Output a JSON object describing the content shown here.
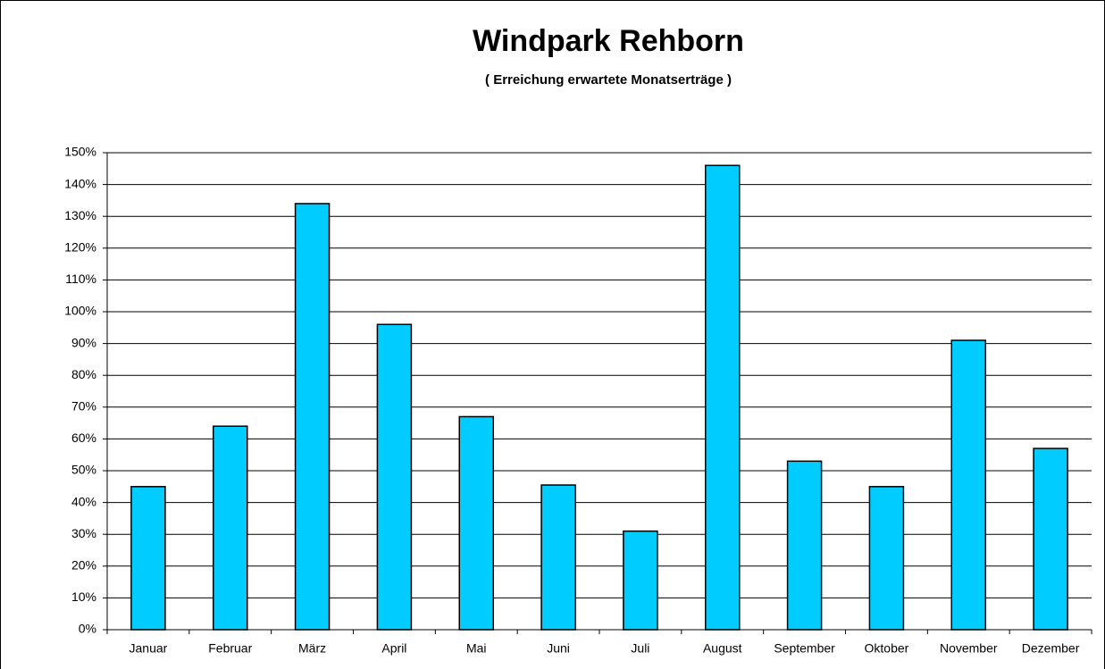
{
  "chart_data": {
    "type": "bar",
    "title": "Windpark Rehborn",
    "subtitle": "( Erreichung erwartete Monatserträge )",
    "categories": [
      "Januar",
      "Februar",
      "März",
      "April",
      "Mai",
      "Juni",
      "Juli",
      "August",
      "September",
      "Oktober",
      "November",
      "Dezember"
    ],
    "values": [
      45,
      64,
      134,
      96,
      67,
      45.5,
      31,
      146,
      53,
      45,
      91,
      57
    ],
    "color": "#00ccff",
    "ylim": [
      0,
      150
    ],
    "yticks": [
      {
        "value": 0,
        "label": "0%"
      },
      {
        "value": 10,
        "label": "10%"
      },
      {
        "value": 20,
        "label": "20%"
      },
      {
        "value": 30,
        "label": "30%"
      },
      {
        "value": 40,
        "label": "40%"
      },
      {
        "value": 50,
        "label": "50%"
      },
      {
        "value": 60,
        "label": "60%"
      },
      {
        "value": 70,
        "label": "70%"
      },
      {
        "value": 80,
        "label": "80%"
      },
      {
        "value": 90,
        "label": "90%"
      },
      {
        "value": 100,
        "label": "100%"
      },
      {
        "value": 110,
        "label": "110%"
      },
      {
        "value": 120,
        "label": "120%"
      },
      {
        "value": 130,
        "label": "130%"
      },
      {
        "value": 140,
        "label": "140%"
      },
      {
        "value": 150,
        "label": "150%"
      }
    ],
    "grid": true
  }
}
